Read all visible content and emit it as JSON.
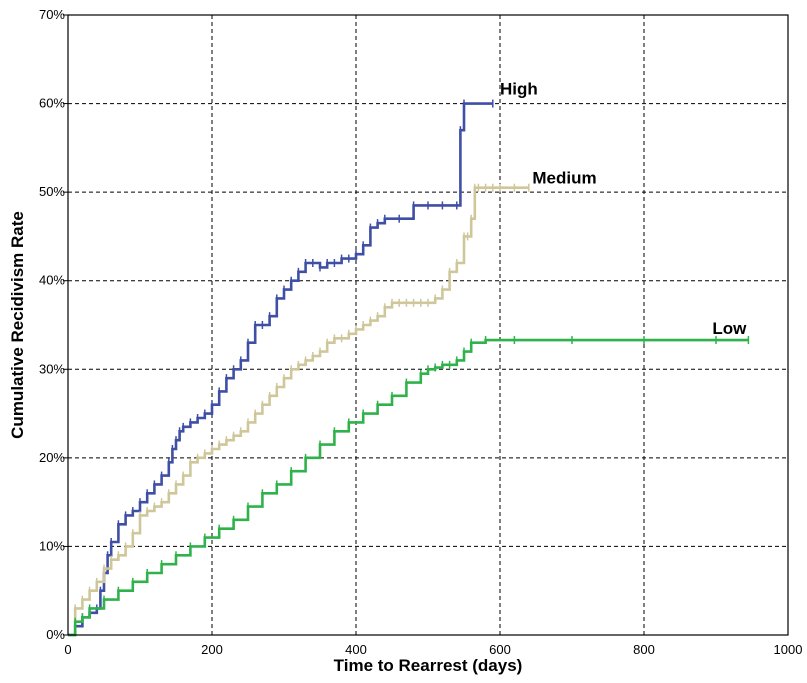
{
  "chart_data": {
    "type": "line",
    "xlabel": "Time to Rearrest (days)",
    "ylabel": "Cumulative Recidivism Rate",
    "xlim": [
      0,
      1000
    ],
    "ylim": [
      0,
      70
    ],
    "xticks": [
      0,
      200,
      400,
      600,
      800,
      1000
    ],
    "yticks": [
      0,
      10,
      20,
      30,
      40,
      50,
      60,
      70
    ],
    "ytick_labels": [
      "0%",
      "10%",
      "20%",
      "30%",
      "40%",
      "50%",
      "60%",
      "70%"
    ],
    "grid": true,
    "series": [
      {
        "name": "High",
        "color": "#3f4fa6",
        "x": [
          0,
          10,
          20,
          30,
          40,
          45,
          50,
          55,
          60,
          70,
          80,
          90,
          100,
          110,
          120,
          130,
          140,
          145,
          150,
          155,
          160,
          170,
          180,
          190,
          200,
          210,
          220,
          230,
          240,
          250,
          260,
          270,
          280,
          290,
          300,
          310,
          320,
          330,
          340,
          350,
          360,
          370,
          380,
          390,
          400,
          410,
          420,
          430,
          440,
          460,
          480,
          500,
          520,
          540,
          545,
          550,
          590
        ],
        "y": [
          0,
          1,
          2,
          2.5,
          3,
          5,
          7,
          9,
          10.5,
          12.5,
          13.5,
          14,
          15,
          16,
          17,
          18,
          19.5,
          21,
          22,
          23,
          23.5,
          24,
          24.5,
          25,
          26,
          27.5,
          29,
          30,
          31,
          33,
          35,
          35,
          36,
          38,
          39,
          40,
          41,
          42,
          42,
          41.5,
          42,
          42,
          42.5,
          42.5,
          43,
          44,
          46,
          46.5,
          47,
          47,
          48.5,
          48.5,
          48.5,
          48.5,
          57,
          60,
          60
        ]
      },
      {
        "name": "Medium",
        "color": "#cfc79a",
        "x": [
          0,
          10,
          20,
          30,
          40,
          50,
          60,
          70,
          80,
          90,
          100,
          110,
          120,
          130,
          140,
          150,
          160,
          170,
          180,
          190,
          200,
          210,
          220,
          230,
          240,
          250,
          260,
          270,
          280,
          290,
          300,
          310,
          320,
          330,
          340,
          350,
          360,
          370,
          380,
          390,
          400,
          410,
          420,
          430,
          440,
          450,
          460,
          470,
          480,
          490,
          500,
          510,
          520,
          530,
          540,
          550,
          555,
          560,
          565,
          570,
          580,
          590,
          600,
          620,
          640
        ],
        "y": [
          0,
          3,
          4,
          5,
          6,
          7.5,
          8.5,
          9,
          10,
          11.5,
          13.5,
          14,
          14.5,
          15,
          16,
          17,
          18,
          19.5,
          20,
          20.5,
          21,
          21.5,
          22,
          22.5,
          23,
          24,
          25,
          26,
          27,
          28,
          29,
          30,
          30.5,
          31,
          31.5,
          32,
          33,
          33.5,
          33.5,
          34,
          34.5,
          35,
          35.5,
          36,
          37,
          37.5,
          37.5,
          37.5,
          37.5,
          37.5,
          37.5,
          38,
          39,
          41,
          42,
          45,
          45,
          47,
          50.5,
          50.5,
          50.5,
          50.5,
          50.5,
          50.5,
          50.5
        ]
      },
      {
        "name": "Low",
        "color": "#2fb24a",
        "x": [
          0,
          10,
          20,
          30,
          50,
          70,
          90,
          110,
          130,
          150,
          170,
          190,
          210,
          230,
          250,
          270,
          290,
          310,
          330,
          350,
          370,
          390,
          410,
          430,
          450,
          470,
          490,
          500,
          510,
          520,
          530,
          540,
          550,
          560,
          580,
          620,
          700,
          800,
          900,
          945
        ],
        "y": [
          0,
          1.5,
          2,
          3,
          4,
          5,
          6,
          7,
          8,
          9,
          10,
          11,
          12,
          13,
          14.5,
          16,
          17,
          18.5,
          20,
          21.5,
          23,
          24,
          25,
          26,
          27,
          28.5,
          29.5,
          30,
          30.2,
          30.5,
          30.5,
          31,
          32,
          33,
          33.3,
          33.3,
          33.3,
          33.3,
          33.3,
          33.3
        ]
      }
    ],
    "annotations": [
      {
        "text": "High",
        "x": 600,
        "y": 61
      },
      {
        "text": "Medium",
        "x": 645,
        "y": 51
      },
      {
        "text": "Low",
        "x": 895,
        "y": 34
      }
    ]
  }
}
